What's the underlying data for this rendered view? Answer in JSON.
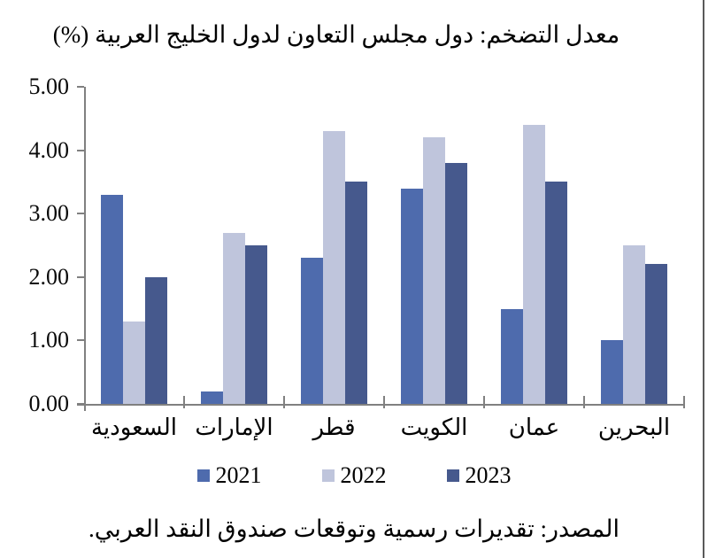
{
  "title": "معدل التضخم: دول مجلس التعاون لدول الخليج العربية (%)",
  "source": "المصدر: تقديرات رسمية وتوقعات صندوق النقد العربي.",
  "chart_data": {
    "type": "bar",
    "title": "معدل التضخم: دول مجلس التعاون لدول الخليج العربية (%)",
    "categories": [
      "السعودية",
      "الإمارات",
      "قطر",
      "الكويت",
      "عمان",
      "البحرين"
    ],
    "series": [
      {
        "name": "2021",
        "color": "#4E6BAD",
        "values": [
          3.3,
          0.2,
          2.3,
          3.4,
          1.5,
          1.0
        ]
      },
      {
        "name": "2022",
        "color": "#BFC5DC",
        "values": [
          1.3,
          2.7,
          4.3,
          4.2,
          4.4,
          2.5
        ]
      },
      {
        "name": "2023",
        "color": "#46598D",
        "values": [
          2.0,
          2.5,
          3.5,
          3.8,
          3.5,
          2.2
        ]
      }
    ],
    "ylim": [
      0,
      5
    ],
    "ytick_step": 1,
    "ytick_labels": [
      "0.00",
      "1.00",
      "2.00",
      "3.00",
      "4.00",
      "5.00"
    ],
    "xlabel": "",
    "ylabel": "",
    "grid": false,
    "legend_position": "bottom"
  },
  "colors": {
    "axis": "#808080",
    "text": "#000000",
    "bar_2021": "#4E6BAD",
    "bar_2022": "#BFC5DC",
    "bar_2023": "#46598D",
    "right_border": "#5A5A5A",
    "background": "#FFFFFF"
  }
}
